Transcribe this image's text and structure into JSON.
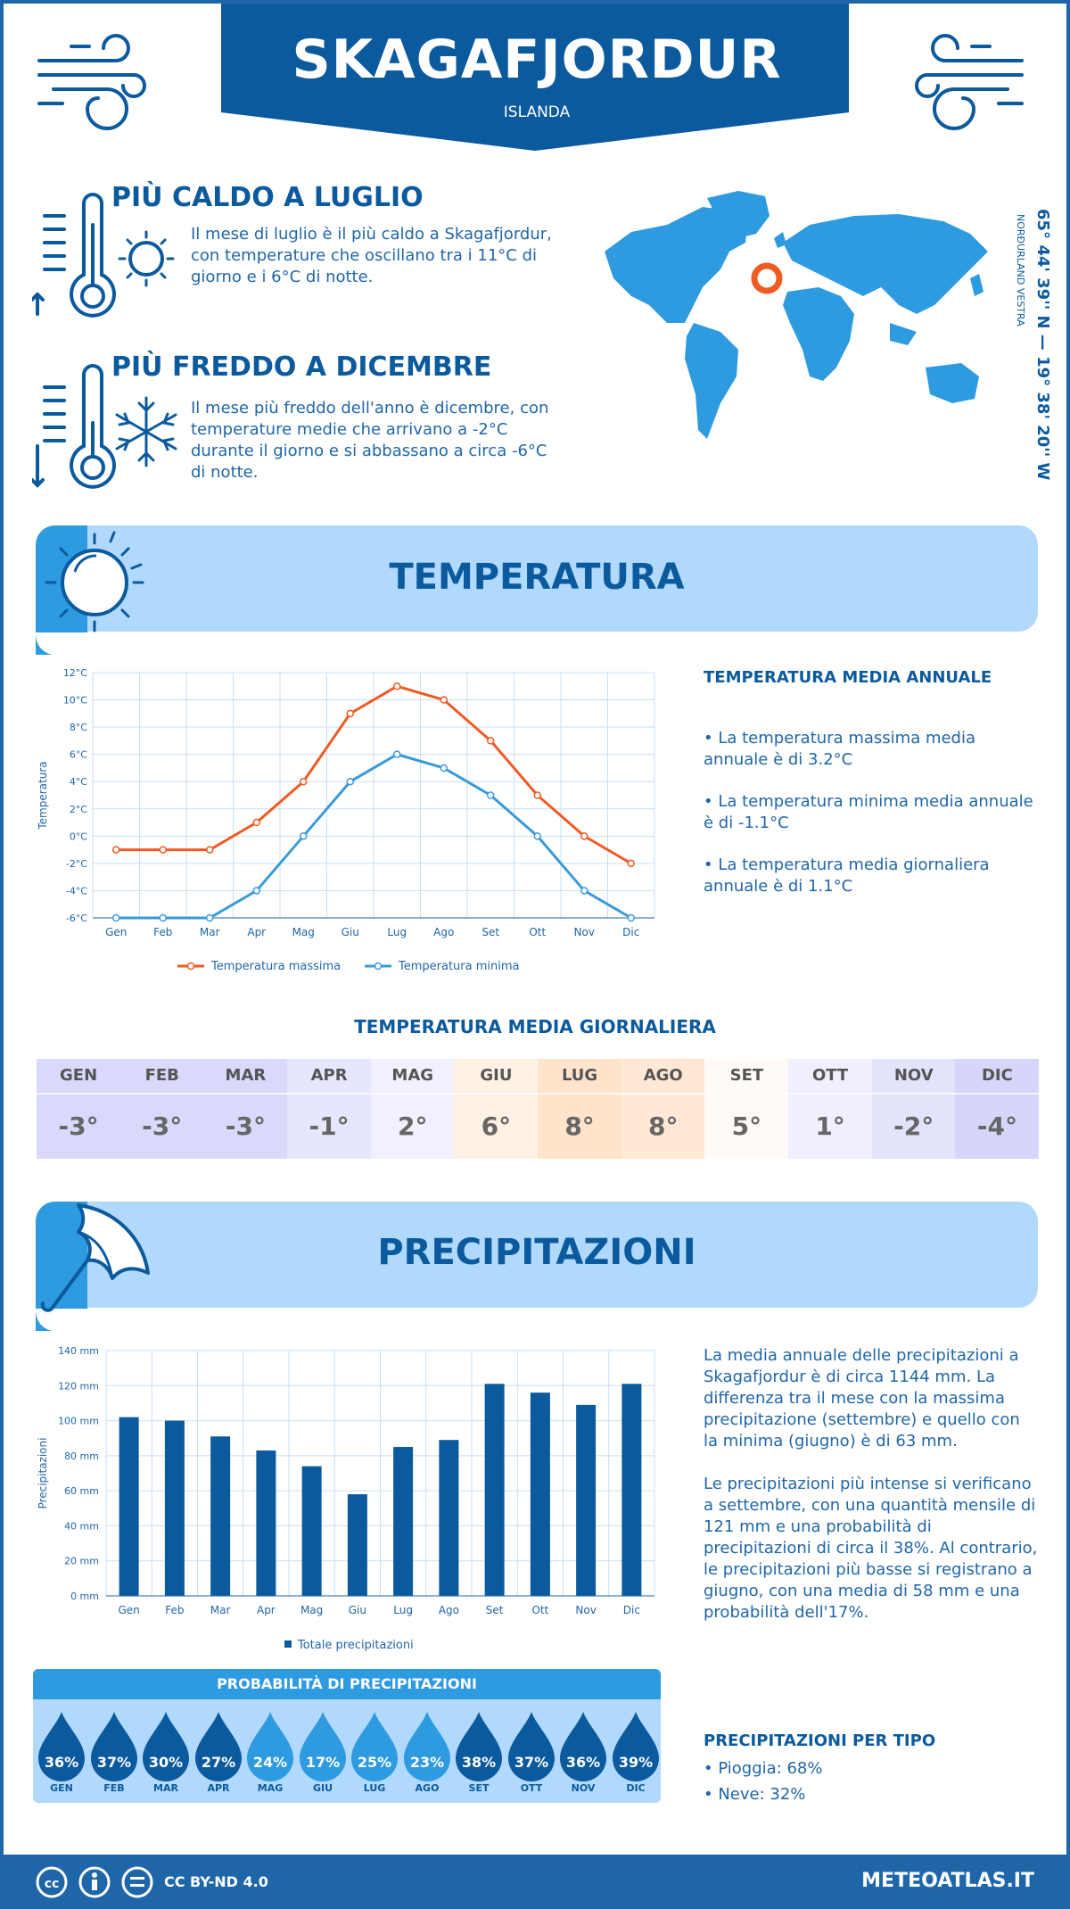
{
  "header": {
    "title": "SKAGAFJORDUR",
    "subtitle": "ISLANDA"
  },
  "coords": {
    "main": "65° 44' 39'' N — 19° 38' 20'' W",
    "region": "NORÐURLAND VESTRA"
  },
  "hot": {
    "heading": "PIÙ CALDO A LUGLIO",
    "text": "Il mese di luglio è il più caldo a Skagafjordur, con temperature che oscillano tra i 11°C di giorno e i 6°C di notte."
  },
  "cold": {
    "heading": "PIÙ FREDDO A DICEMBRE",
    "text": "Il mese più freddo dell'anno è dicembre, con temperature medie che arrivano a -2°C durante il giorno e si abbassano a circa -6°C di notte."
  },
  "temperature": {
    "section_title": "TEMPERATURA",
    "annual_heading": "TEMPERATURA MEDIA ANNUALE",
    "bullets": [
      "• La temperatura massima media annuale è di 3.2°C",
      "• La temperatura minima media annuale è di -1.1°C",
      "• La temperatura media giornaliera annuale è di 1.1°C"
    ],
    "daily_heading": "TEMPERATURA MEDIA GIORNALIERA",
    "daily": [
      {
        "month": "GEN",
        "value": "-3°",
        "color": "#d9d9fb"
      },
      {
        "month": "FEB",
        "value": "-3°",
        "color": "#d9d9fb"
      },
      {
        "month": "MAR",
        "value": "-3°",
        "color": "#d9d9fb"
      },
      {
        "month": "APR",
        "value": "-1°",
        "color": "#e6e6fc"
      },
      {
        "month": "MAG",
        "value": "2°",
        "color": "#f1f1fd"
      },
      {
        "month": "GIU",
        "value": "6°",
        "color": "#fff1e4"
      },
      {
        "month": "LUG",
        "value": "8°",
        "color": "#ffe4cc"
      },
      {
        "month": "AGO",
        "value": "8°",
        "color": "#ffe9d5"
      },
      {
        "month": "SET",
        "value": "5°",
        "color": "#fffaf6"
      },
      {
        "month": "OTT",
        "value": "1°",
        "color": "#efeffd"
      },
      {
        "month": "NOV",
        "value": "-2°",
        "color": "#e3e3fc"
      },
      {
        "month": "DIC",
        "value": "-4°",
        "color": "#d6d6fb"
      }
    ]
  },
  "precip": {
    "section_title": "PRECIPITAZIONI",
    "para1": "La media annuale delle precipitazioni a Skagafjordur è di circa 1144 mm. La differenza tra il mese con la massima precipitazione (settembre) e quello con la minima (giugno) è di 63 mm.",
    "para2": "Le precipitazioni più intense si verificano a settembre, con una quantità mensile di 121 mm e una probabilità di precipitazioni di circa il 38%. Al contrario, le precipitazioni più basse si registrano a giugno, con una media di 58 mm e una probabilità dell'17%.",
    "prob_heading": "PROBABILITÀ DI PRECIPITAZIONI",
    "probabilities": [
      {
        "month": "GEN",
        "value": "36%",
        "color": "#0b5a9e"
      },
      {
        "month": "FEB",
        "value": "37%",
        "color": "#0b5a9e"
      },
      {
        "month": "MAR",
        "value": "30%",
        "color": "#0b5a9e"
      },
      {
        "month": "APR",
        "value": "27%",
        "color": "#0b5a9e"
      },
      {
        "month": "MAG",
        "value": "24%",
        "color": "#2e9ae0"
      },
      {
        "month": "GIU",
        "value": "17%",
        "color": "#2e9ae0"
      },
      {
        "month": "LUG",
        "value": "25%",
        "color": "#2e9ae0"
      },
      {
        "month": "AGO",
        "value": "23%",
        "color": "#2e9ae0"
      },
      {
        "month": "SET",
        "value": "38%",
        "color": "#0b5a9e"
      },
      {
        "month": "OTT",
        "value": "37%",
        "color": "#0b5a9e"
      },
      {
        "month": "NOV",
        "value": "36%",
        "color": "#0b5a9e"
      },
      {
        "month": "DIC",
        "value": "39%",
        "color": "#0b5a9e"
      }
    ],
    "type_heading": "PRECIPITAZIONI PER TIPO",
    "types": [
      "• Pioggia: 68%",
      "• Neve: 32%"
    ]
  },
  "footer": {
    "license": "CC BY-ND 4.0",
    "site": "METEOATLAS.IT"
  },
  "colors": {
    "primary": "#0b5a9e",
    "light_band": "#b0d9fd",
    "accent_blue": "#2e9ae0",
    "max_line": "#f05a23",
    "min_line": "#3a9ad9"
  },
  "chart_data": [
    {
      "type": "line",
      "categories": [
        "Gen",
        "Feb",
        "Mar",
        "Apr",
        "Mag",
        "Giu",
        "Lug",
        "Ago",
        "Set",
        "Ott",
        "Nov",
        "Dic"
      ],
      "series": [
        {
          "name": "Temperatura massima",
          "values": [
            -1,
            -1,
            -1,
            1,
            4,
            9,
            11,
            10,
            7,
            3,
            0,
            -2
          ]
        },
        {
          "name": "Temperatura minima",
          "values": [
            -6,
            -6,
            -6,
            -4,
            0,
            4,
            6,
            5,
            3,
            0,
            -4,
            -6
          ]
        }
      ],
      "ylabel": "Temperatura",
      "ylim": [
        -6,
        12
      ],
      "yticks": [
        "-6°C",
        "-4°C",
        "-2°C",
        "0°C",
        "2°C",
        "4°C",
        "6°C",
        "8°C",
        "10°C",
        "12°C"
      ],
      "grid": true,
      "legend": "bottom"
    },
    {
      "type": "bar",
      "categories": [
        "Gen",
        "Feb",
        "Mar",
        "Apr",
        "Mag",
        "Giu",
        "Lug",
        "Ago",
        "Set",
        "Ott",
        "Nov",
        "Dic"
      ],
      "series": [
        {
          "name": "Totale precipitazioni",
          "values": [
            102,
            100,
            91,
            83,
            74,
            58,
            85,
            89,
            121,
            116,
            109,
            121
          ]
        }
      ],
      "ylabel": "Precipitazioni",
      "ylim": [
        0,
        140
      ],
      "yticks": [
        "0 mm",
        "20 mm",
        "40 mm",
        "60 mm",
        "80 mm",
        "100 mm",
        "120 mm",
        "140 mm"
      ],
      "grid": true,
      "legend": "bottom"
    }
  ]
}
